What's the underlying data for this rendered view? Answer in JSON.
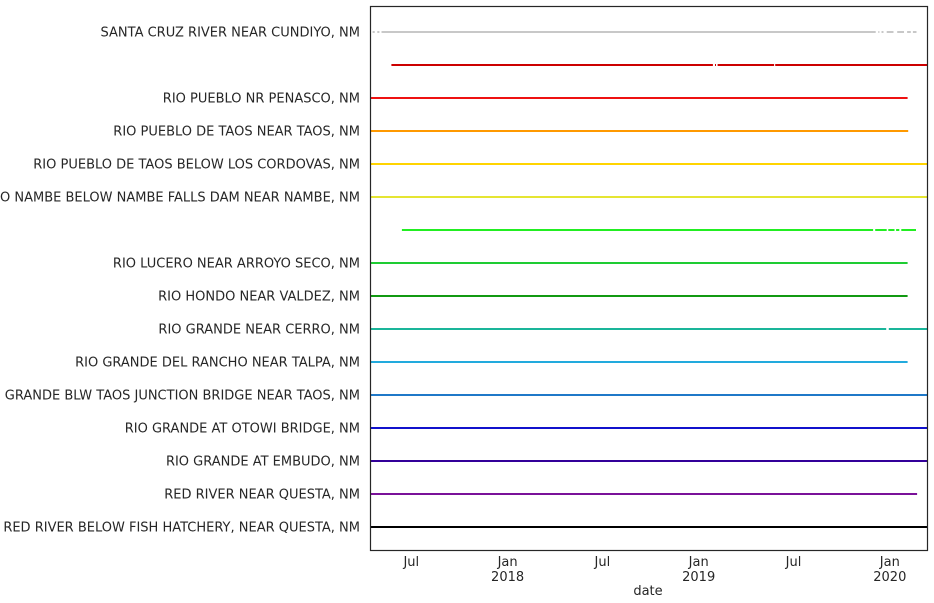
{
  "chart_data": {
    "type": "timeline",
    "xlabel": "date",
    "x_ticks": [
      {
        "date": "2017-07-01",
        "label": "Jul",
        "sublabel": ""
      },
      {
        "date": "2018-01-01",
        "label": "Jan",
        "sublabel": "2018"
      },
      {
        "date": "2018-07-01",
        "label": "Jul",
        "sublabel": ""
      },
      {
        "date": "2019-01-01",
        "label": "Jan",
        "sublabel": "2019"
      },
      {
        "date": "2019-07-01",
        "label": "Jul",
        "sublabel": ""
      },
      {
        "date": "2020-01-01",
        "label": "Jan",
        "sublabel": "2020"
      }
    ],
    "xlim": [
      "2017-04-15",
      "2020-03-12"
    ],
    "legend": "none",
    "grid": false,
    "series": [
      {
        "name": "SANTA CRUZ RIVER NEAR CUNDIYO, NM",
        "color": "#c8c8c8",
        "segments": [
          [
            "2017-04-18",
            "2017-04-22"
          ],
          [
            "2017-04-27",
            "2017-05-01"
          ],
          [
            "2017-05-05",
            "2019-12-05"
          ],
          [
            "2019-12-10",
            "2019-12-12"
          ],
          [
            "2019-12-16",
            "2019-12-20"
          ],
          [
            "2019-12-26",
            "2020-01-08"
          ],
          [
            "2020-01-15",
            "2020-01-28"
          ],
          [
            "2020-02-03",
            "2020-02-10"
          ],
          [
            "2020-02-14",
            "2020-02-21"
          ]
        ]
      },
      {
        "name": "",
        "color": "#cc0000",
        "segments": [
          [
            "2017-05-24",
            "2019-01-28"
          ],
          [
            "2019-02-01",
            "2019-02-03"
          ],
          [
            "2019-02-06",
            "2019-05-25"
          ],
          [
            "2019-05-27",
            "2020-03-12"
          ]
        ]
      },
      {
        "name": "RIO PUEBLO NR PENASCO, NM",
        "color": "#ee1111",
        "segments": [
          [
            "2017-04-15",
            "2020-02-04"
          ]
        ]
      },
      {
        "name": "RIO PUEBLO DE TAOS NEAR TAOS, NM",
        "color": "#ff9900",
        "segments": [
          [
            "2017-04-15",
            "2020-02-05"
          ]
        ]
      },
      {
        "name": "RIO PUEBLO DE TAOS BELOW LOS CORDOVAS, NM",
        "color": "#ffd400",
        "segments": [
          [
            "2017-04-15",
            "2020-03-12"
          ]
        ]
      },
      {
        "name": "RIO NAMBE BELOW NAMBE FALLS DAM NEAR NAMBE, NM",
        "color": "#e5e533",
        "segments": [
          [
            "2017-04-15",
            "2020-03-12"
          ]
        ]
      },
      {
        "name": "",
        "color": "#22ee22",
        "segments": [
          [
            "2017-06-13",
            "2019-11-30"
          ],
          [
            "2019-12-04",
            "2019-12-26"
          ],
          [
            "2019-12-29",
            "2020-01-10"
          ],
          [
            "2020-01-13",
            "2020-01-19"
          ],
          [
            "2020-01-23",
            "2020-02-20"
          ]
        ]
      },
      {
        "name": "RIO LUCERO NEAR ARROYO SECO, NM",
        "color": "#1ecc33",
        "segments": [
          [
            "2017-04-15",
            "2020-02-04"
          ]
        ]
      },
      {
        "name": "RIO HONDO NEAR VALDEZ, NM",
        "color": "#119911",
        "segments": [
          [
            "2017-04-15",
            "2020-02-04"
          ]
        ]
      },
      {
        "name": "RIO GRANDE NEAR CERRO, NM",
        "color": "#1ab59a",
        "segments": [
          [
            "2017-04-15",
            "2019-12-25"
          ],
          [
            "2019-12-30",
            "2020-03-12"
          ]
        ]
      },
      {
        "name": "RIO GRANDE DEL RANCHO NEAR TALPA, NM",
        "color": "#22aadd",
        "segments": [
          [
            "2017-04-15",
            "2020-02-04"
          ]
        ]
      },
      {
        "name": "RIO GRANDE BLW TAOS JUNCTION BRIDGE NEAR TAOS, NM",
        "color": "#1f78c8",
        "segments": [
          [
            "2017-04-15",
            "2020-03-12"
          ]
        ]
      },
      {
        "name": "RIO GRANDE AT OTOWI BRIDGE, NM",
        "color": "#1111cc",
        "segments": [
          [
            "2017-04-15",
            "2020-03-12"
          ]
        ]
      },
      {
        "name": "RIO GRANDE AT EMBUDO, NM",
        "color": "#330099",
        "segments": [
          [
            "2017-04-15",
            "2020-03-12"
          ]
        ]
      },
      {
        "name": "RED RIVER NEAR QUESTA, NM",
        "color": "#7a1199",
        "segments": [
          [
            "2017-04-15",
            "2020-02-22"
          ]
        ]
      },
      {
        "name": "RED RIVER BELOW FISH HATCHERY, NEAR QUESTA, NM",
        "color": "#000000",
        "segments": [
          [
            "2017-04-15",
            "2020-03-12"
          ]
        ]
      }
    ]
  }
}
